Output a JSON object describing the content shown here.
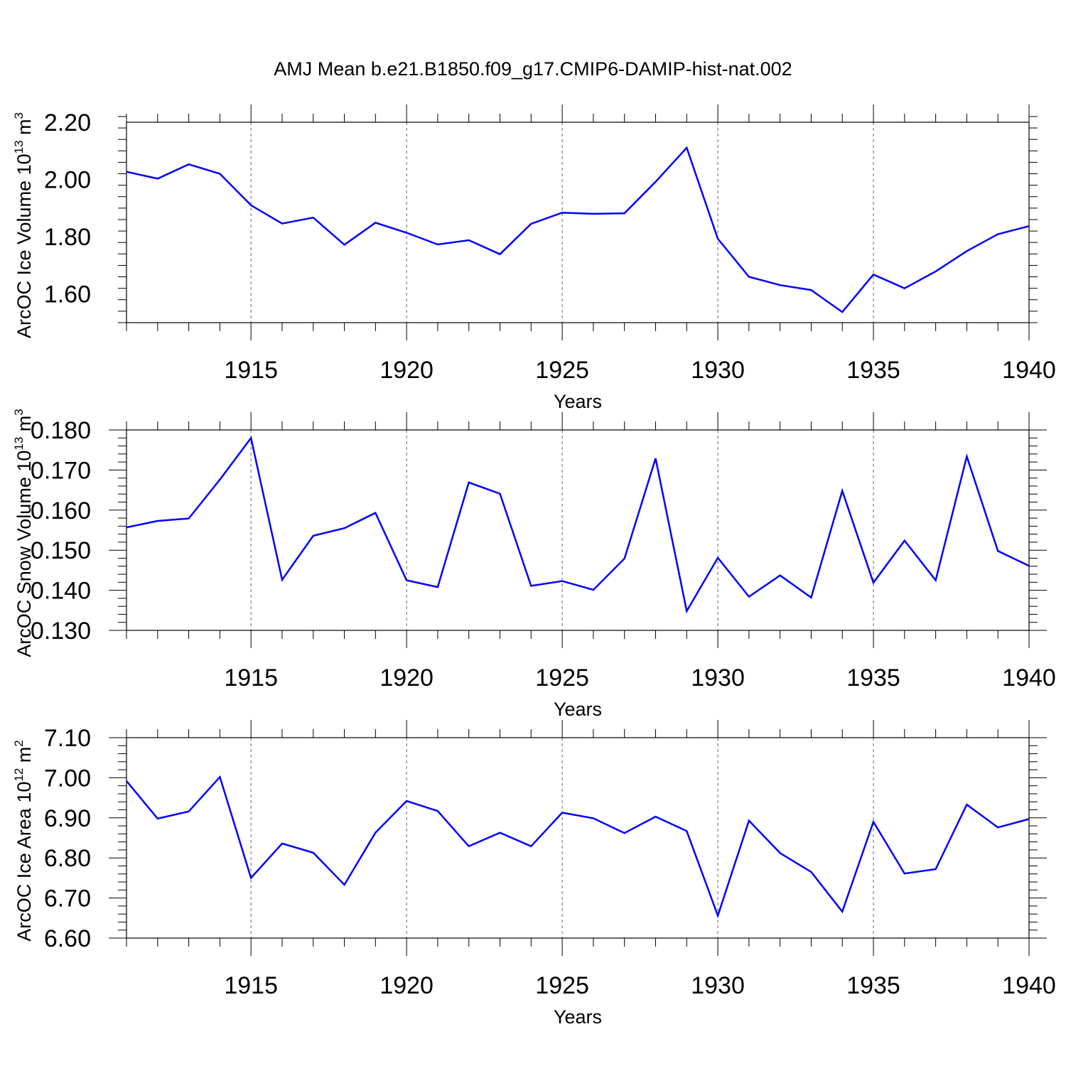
{
  "title": "AMJ Mean b.e21.B1850.f09_g17.CMIP6-DAMIP-hist-nat.002",
  "line_color": "#0000ff",
  "chart_data": [
    {
      "type": "line",
      "ylabel": {
        "text": "ArcOC Ice Volume 10",
        "exponent": "13",
        "unit": "m",
        "unit_exponent": "3"
      },
      "xlabel": "Years",
      "xlim": [
        1911,
        1940
      ],
      "ylim": [
        1.5,
        2.2
      ],
      "yticks": [
        1.6,
        1.8,
        2.0,
        2.2
      ],
      "ytick_labels": [
        "1.60",
        "1.80",
        "2.00",
        "2.20"
      ],
      "xticks": [
        1915,
        1920,
        1925,
        1930,
        1935,
        1940
      ],
      "xtick_labels": [
        "1915",
        "1920",
        "1925",
        "1930",
        "1935",
        "1940"
      ],
      "grid": "vertical dashed at major x ticks",
      "x": [
        1911,
        1912,
        1913,
        1914,
        1915,
        1916,
        1917,
        1918,
        1919,
        1920,
        1921,
        1922,
        1923,
        1924,
        1925,
        1926,
        1927,
        1928,
        1929,
        1930,
        1931,
        1932,
        1933,
        1934,
        1935,
        1936,
        1937,
        1938,
        1939,
        1940
      ],
      "values": [
        2.027,
        2.003,
        2.053,
        2.02,
        1.91,
        1.846,
        1.867,
        1.772,
        1.849,
        1.814,
        1.773,
        1.788,
        1.739,
        1.845,
        1.884,
        1.88,
        1.882,
        1.992,
        2.111,
        1.793,
        1.66,
        1.631,
        1.614,
        1.537,
        1.668,
        1.62,
        1.679,
        1.75,
        1.809,
        1.837
      ]
    },
    {
      "type": "line",
      "ylabel": {
        "text": "ArcOC Snow Volume 10",
        "exponent": "13",
        "unit": "m",
        "unit_exponent": "3"
      },
      "xlabel": "Years",
      "xlim": [
        1911,
        1940
      ],
      "ylim": [
        0.13,
        0.18
      ],
      "yticks": [
        0.13,
        0.14,
        0.15,
        0.16,
        0.17,
        0.18
      ],
      "ytick_labels": [
        "0.130",
        "0.140",
        "0.150",
        "0.160",
        "0.170",
        "0.180"
      ],
      "xticks": [
        1915,
        1920,
        1925,
        1930,
        1935,
        1940
      ],
      "xtick_labels": [
        "1915",
        "1920",
        "1925",
        "1930",
        "1935",
        "1940"
      ],
      "grid": "vertical dashed at major x ticks",
      "x": [
        1911,
        1912,
        1913,
        1914,
        1915,
        1916,
        1917,
        1918,
        1919,
        1920,
        1921,
        1922,
        1923,
        1924,
        1925,
        1926,
        1927,
        1928,
        1929,
        1930,
        1931,
        1932,
        1933,
        1934,
        1935,
        1936,
        1937,
        1938,
        1939,
        1940
      ],
      "values": [
        0.1557,
        0.1573,
        0.1579,
        0.1676,
        0.178,
        0.1426,
        0.1536,
        0.1555,
        0.1593,
        0.1425,
        0.1408,
        0.1669,
        0.1641,
        0.1411,
        0.1423,
        0.1401,
        0.1479,
        0.1729,
        0.1348,
        0.1481,
        0.1384,
        0.1437,
        0.1382,
        0.1648,
        0.1419,
        0.1524,
        0.1425,
        0.1734,
        0.1498,
        0.1461
      ]
    },
    {
      "type": "line",
      "ylabel": {
        "text": "ArcOC Ice Area 10",
        "exponent": "12",
        "unit": "m",
        "unit_exponent": "2"
      },
      "xlabel": "Years",
      "xlim": [
        1911,
        1940
      ],
      "ylim": [
        6.6,
        7.1
      ],
      "yticks": [
        6.6,
        6.7,
        6.8,
        6.9,
        7.0,
        7.1
      ],
      "ytick_labels": [
        "6.60",
        "6.70",
        "6.80",
        "6.90",
        "7.00",
        "7.10"
      ],
      "xticks": [
        1915,
        1920,
        1925,
        1930,
        1935,
        1940
      ],
      "xtick_labels": [
        "1915",
        "1920",
        "1925",
        "1930",
        "1935",
        "1940"
      ],
      "grid": "vertical dashed at major x ticks",
      "x": [
        1911,
        1912,
        1913,
        1914,
        1915,
        1916,
        1917,
        1918,
        1919,
        1920,
        1921,
        1922,
        1923,
        1924,
        1925,
        1926,
        1927,
        1928,
        1929,
        1930,
        1931,
        1932,
        1933,
        1934,
        1935,
        1936,
        1937,
        1938,
        1939,
        1940
      ],
      "values": [
        6.992,
        6.898,
        6.916,
        7.002,
        6.75,
        6.836,
        6.813,
        6.733,
        6.863,
        6.942,
        6.917,
        6.829,
        6.863,
        6.829,
        6.913,
        6.899,
        6.862,
        6.903,
        6.867,
        6.656,
        6.893,
        6.812,
        6.765,
        6.666,
        6.89,
        6.761,
        6.772,
        6.933,
        6.876,
        6.897
      ]
    }
  ]
}
